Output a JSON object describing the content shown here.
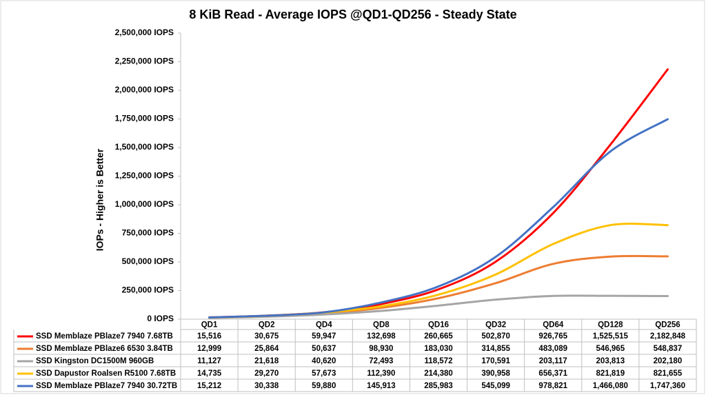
{
  "chart_data": {
    "type": "line",
    "title": "8 KiB Read - Average IOPS @QD1-QD256 - Steady State",
    "y_label": "IOPs  -  Higher is Better",
    "categories": [
      "QD1",
      "QD2",
      "QD4",
      "QD8",
      "QD16",
      "QD32",
      "QD64",
      "QD128",
      "QD256"
    ],
    "series": [
      {
        "name": "SSD Memblaze PBlaze7 7940 7.68TB",
        "color": "#ff0000",
        "values": [
          15516,
          30675,
          59947,
          132698,
          260665,
          502870,
          926765,
          1525515,
          2182848
        ],
        "value_labels": [
          "15,516",
          "30,675",
          "59,947",
          "132,698",
          "260,665",
          "502,870",
          "926,765",
          "1,525,515",
          "2,182,848"
        ]
      },
      {
        "name": "SSD Memblaze PBlaze6 6530 3.84TB",
        "color": "#ed7d31",
        "values": [
          12999,
          25864,
          50637,
          98930,
          183030,
          314855,
          483089,
          546965,
          548837
        ],
        "value_labels": [
          "12,999",
          "25,864",
          "50,637",
          "98,930",
          "183,030",
          "314,855",
          "483,089",
          "546,965",
          "548,837"
        ]
      },
      {
        "name": "SSD Kingston DC1500M 960GB",
        "color": "#a5a5a5",
        "values": [
          11127,
          21618,
          40620,
          72493,
          118572,
          170591,
          203117,
          203813,
          202180
        ],
        "value_labels": [
          "11,127",
          "21,618",
          "40,620",
          "72,493",
          "118,572",
          "170,591",
          "203,117",
          "203,813",
          "202,180"
        ]
      },
      {
        "name": "SSD Dapustor Roalsen R5100 7.68TB",
        "color": "#ffc000",
        "values": [
          14735,
          29270,
          57673,
          112390,
          214380,
          390958,
          656371,
          821819,
          821655
        ],
        "value_labels": [
          "14,735",
          "29,270",
          "57,673",
          "112,390",
          "214,380",
          "390,958",
          "656,371",
          "821,819",
          "821,655"
        ]
      },
      {
        "name": "SSD Memblaze PBlaze7 7940 30.72TB",
        "color": "#4472c4",
        "values": [
          15212,
          30338,
          59880,
          145913,
          285983,
          545099,
          978821,
          1466080,
          1747360
        ],
        "value_labels": [
          "15,212",
          "30,338",
          "59,880",
          "145,913",
          "285,983",
          "545,099",
          "978,821",
          "1,466,080",
          "1,747,360"
        ]
      }
    ],
    "ylim": [
      0,
      2500000
    ],
    "yticks": [
      {
        "value": 0,
        "label": "0 IOPS"
      },
      {
        "value": 250000,
        "label": "250,000 IOPS"
      },
      {
        "value": 500000,
        "label": "500,000 IOPS"
      },
      {
        "value": 750000,
        "label": "750,000 IOPS"
      },
      {
        "value": 1000000,
        "label": "1,000,000 IOPS"
      },
      {
        "value": 1250000,
        "label": "1,250,000 IOPS"
      },
      {
        "value": 1500000,
        "label": "1,500,000 IOPS"
      },
      {
        "value": 1750000,
        "label": "1,750,000 IOPS"
      },
      {
        "value": 2000000,
        "label": "2,000,000 IOPS"
      },
      {
        "value": 2250000,
        "label": "2,250,000 IOPS"
      },
      {
        "value": 2500000,
        "label": "2,500,000 IOPS"
      }
    ],
    "grid": false
  }
}
